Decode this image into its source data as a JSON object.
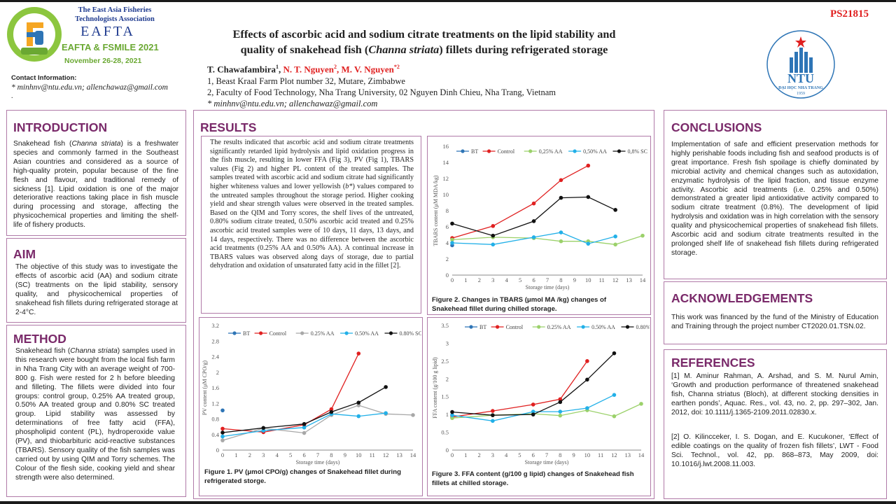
{
  "header": {
    "assoc_line1": "The East Asia Fisheries",
    "assoc_line2": "Technologists Association",
    "eafta_big": "EAFTA",
    "eafta_sub": "EAFTA & FSMILE 2021",
    "eafta_date": "November 26-28, 2021",
    "contact_label": "Contact Information:",
    "contact_emails": "* minhnv@ntu.edu.vn; allenchawaz@gmail.com",
    "contact_dot": ".",
    "title_line1": "Effects of ascorbic acid and sodium citrate treatments on the lipid stability and",
    "title_line2a": "quality of snakehead fish (",
    "title_line2b": "Channa striata",
    "title_line2c": ") fillets during refrigerated storage",
    "author1": "T. Chawafambira",
    "author1_sup": "1",
    "author_sep": ", ",
    "author2": "N. T. Nguyen",
    "author2_sup": "2",
    "author3": "M. V. Nguyen",
    "author3_sup": "*2",
    "affil1": "1, Beast Kraal Farm Plot number 32, Mutare, Zimbabwe",
    "affil2": "2, Faculty of Food Technology, Nha Trang University, 02 Nguyen Dinh Chieu, Nha Trang, Vietnam",
    "affil3": "* minhnv@ntu.edu.vn; allenchawaz@gmail.com",
    "ps_code": "PS21815",
    "ntu_text": "NTU",
    "ntu_name": "ĐẠI HỌC NHA TRANG",
    "ntu_year": "1959"
  },
  "sections": {
    "introduction": {
      "heading": "INTRODUCTION",
      "p1": "Snakehead fish (",
      "p1_italic": "Channa striata",
      "p1_rest": ") is a freshwater species and commonly farmed in the Southeast Asian countries and considered as a source of high-quality protein, popular because of the fine flesh and flavour, and traditional remedy of sickness [1]. Lipid oxidation is one of the major deteriorative reactions taking place in fish muscle during processing and storage, affecting the physicochemical properties and limiting the shelf-life of fishery products."
    },
    "aim": {
      "heading": "AIM",
      "text": "The objective of this study was to investigate the effects of ascorbic acid (AA) and sodium citrate (SC) treatments on the lipid stability, sensory quality, and physicochemical properties of snakehead fish fillets during refrigerated storage at 2-4°C."
    },
    "method": {
      "heading": "METHOD",
      "p1": "Snakehead fish (",
      "p1_italic": "Channa striata",
      "p1_rest": ") samples used in this research were bought from the local fish farm in Nha Trang City with an average weight of 700-800 g. Fish were rested for 2 h before bleeding and filleting. The fillets were divided into four groups: control group, 0.25% AA treated group, 0.50% AA treated group and 0.80% SC treated group. Lipid stability was assessed by determinations of free fatty acid (FFA), phospholipid content (PL), hydroperoxide value (PV), and thiobarbituric acid-reactive substances (TBARS). Sensory quality of the fish samples was carried out by using QIM and Torry schemes. The Colour of the flesh side, cooking yield and shear strength were also determined."
    },
    "results": {
      "heading": "RESULTS",
      "p1": "The results indicated that ascorbic acid and sodium citrate treatments significantly retarded lipid hydrolysis and lipid oxidation progress in the fish muscle, resulting in lower FFA (Fig 3), PV (Fig 1), TBARS values (Fig 2) and higher PL content of the treated samples. The samples treated with ascorbic acid and sodium citrate had significantly higher whiteness values and lower yellowish (",
      "p1_italic": "b*",
      "p1_rest": ") values compared to the untreated samples throughout the storage period. Higher cooking yield and shear strength values were observed in the treated samples. Based on the QIM and Torry scores, the shelf lives of the untreated, 0.80% sodium citrate treated, 0.50% ascorbic acid treated and 0.25% ascorbic acid treated samples were of 10 days, 11 days, 13 days, and 14 days, respectively. There was no difference between the ascorbic acid treatments (0.25% AA and 0.50% AA). A continual increase in TBARS values was observed along days of storage, due to partial dehydration and oxidation of unsaturated fatty acid in the fillet [2]."
    },
    "conclusions": {
      "heading": "CONCLUSIONS",
      "text": "Implementation of safe and efficient preservation methods for highly perishable foods including fish and seafood products is of great importance. Fresh fish spoilage is chiefly dominated by microbial activity and chemical changes such as autoxidation, enzymatic hydrolysis of the lipid fraction, and tissue enzyme activity. Ascorbic acid treatments (i.e. 0.25% and 0.50%) demonstrated a greater lipid antioxidative activity compared to sodium citrate treatment (0.8%). The development of lipid hydrolysis and oxidation was in high correlation with the sensory quality and physicochemical properties of snakehead fish fillets. Ascorbic acid and sodium citrate treatments resulted in the prolonged shelf life of snakehead fish fillets during refrigerated storage."
    },
    "acknowledgements": {
      "heading": "ACKNOWLEDGEMENTS",
      "text": "This work was financed by the fund of the Ministry of Education and Training through the project number CT2020.01.TSN.02."
    },
    "references": {
      "heading": "REFERENCES",
      "ref1": "[1]    M. Aminur Rahman, A. Arshad, and S. M. Nurul Amin, ‘Growth and production performance of threatened snakehead fish, Channa striatus (Bloch), at different stocking densities in earthen ponds’, Aquac. Res., vol. 43, no. 2, pp. 297–302, Jan. 2012, doi: 10.1111/j.1365-2109.2011.02830.x.",
      "ref2": "[2]    O. Kilincceker, I. S. Dogan, and E. Kucukoner, ‘Effect of edible coatings on the quality of frozen fish fillets’, LWT - Food Sci. Technol., vol. 42, pp. 868–873, May 2009, doi: 10.1016/j.lwt.2008.11.003."
    }
  },
  "figures": {
    "fig2_caption": "Figure 2.  Changes in TBARS (μmol MA /kg) changes of Snakehead fillet during chilled storage.",
    "fig1_caption": "Figure 1. PV (μmol CPO/g) changes  of Snakehead fillet during refrigerated storge.",
    "fig3_caption": "Figure 3. FFA content (g/100 g lipid) changes of Snakehead fish fillets at chilled storage."
  },
  "chart_data": [
    {
      "type": "line",
      "id": "tbars",
      "xlabel": "Storage time (days)",
      "ylabel": "TBARS content (μM MDA/kg)",
      "xlim": [
        0,
        14
      ],
      "ylim": [
        0,
        16
      ],
      "xticks": [
        0,
        1,
        2,
        3,
        4,
        5,
        6,
        7,
        8,
        9,
        10,
        11,
        12,
        13,
        14
      ],
      "yticks": [
        0,
        2,
        4,
        6,
        8,
        10,
        12,
        14,
        16
      ],
      "legend": "top",
      "series": [
        {
          "name": "BT",
          "color": "#2e75b6",
          "points": [
            [
              0,
              3.7
            ]
          ]
        },
        {
          "name": "Control",
          "color": "#e02020",
          "points": [
            [
              0,
              4.6
            ],
            [
              3,
              6.1
            ],
            [
              6,
              8.9
            ],
            [
              8,
              11.8
            ],
            [
              10,
              13.6
            ]
          ]
        },
        {
          "name": "0,25% AA",
          "color": "#9bd16a",
          "points": [
            [
              0,
              4.4
            ],
            [
              3,
              4.7
            ],
            [
              6,
              4.6
            ],
            [
              8,
              4.2
            ],
            [
              10,
              4.2
            ],
            [
              12,
              3.8
            ],
            [
              14,
              4.9
            ]
          ]
        },
        {
          "name": "0,50% AA",
          "color": "#22b0e8",
          "points": [
            [
              0,
              4.0
            ],
            [
              3,
              3.8
            ],
            [
              6,
              4.7
            ],
            [
              8,
              5.3
            ],
            [
              10,
              3.9
            ],
            [
              12,
              4.8
            ]
          ]
        },
        {
          "name": "0,8% SC",
          "color": "#111111",
          "points": [
            [
              0,
              6.4
            ],
            [
              3,
              4.9
            ],
            [
              6,
              6.7
            ],
            [
              8,
              9.6
            ],
            [
              10,
              9.7
            ],
            [
              12,
              8.1
            ]
          ]
        }
      ]
    },
    {
      "type": "line",
      "id": "pv",
      "xlabel": "Storage time (days)",
      "ylabel": "PV content (μM CPO/g)",
      "xlim": [
        0,
        14
      ],
      "ylim": [
        0,
        3.2
      ],
      "xticks": [
        0,
        1,
        2,
        3,
        4,
        5,
        6,
        7,
        8,
        9,
        10,
        11,
        12,
        13,
        14
      ],
      "yticks": [
        0,
        0.4,
        0.8,
        1.2,
        1.6,
        2.0,
        2.4,
        2.8,
        3.2
      ],
      "ytick_labels": [
        "0",
        "0.4",
        "0.8",
        "1.2",
        "1.6",
        "2",
        "2.4",
        "2.8",
        "3.2"
      ],
      "legend": "top",
      "series": [
        {
          "name": "BT",
          "color": "#2e75b6",
          "points": [
            [
              0,
              1.02
            ]
          ]
        },
        {
          "name": "Control",
          "color": "#e02020",
          "points": [
            [
              0,
              0.55
            ],
            [
              3,
              0.46
            ],
            [
              6,
              0.65
            ],
            [
              8,
              1.05
            ],
            [
              10,
              2.48
            ]
          ]
        },
        {
          "name": "0.25% AA",
          "color": "#a8a8a8",
          "points": [
            [
              0,
              0.25
            ],
            [
              3,
              0.56
            ],
            [
              6,
              0.44
            ],
            [
              8,
              0.9
            ],
            [
              10,
              1.15
            ],
            [
              12,
              0.93
            ],
            [
              14,
              0.9
            ]
          ]
        },
        {
          "name": "0.50% AA",
          "color": "#22b0e8",
          "points": [
            [
              0,
              0.35
            ],
            [
              3,
              0.5
            ],
            [
              6,
              0.58
            ],
            [
              8,
              0.93
            ],
            [
              10,
              0.87
            ],
            [
              12,
              0.95
            ]
          ]
        },
        {
          "name": "0.80% SC",
          "color": "#111111",
          "points": [
            [
              0,
              0.45
            ],
            [
              3,
              0.57
            ],
            [
              6,
              0.67
            ],
            [
              8,
              0.98
            ],
            [
              10,
              1.22
            ],
            [
              12,
              1.62
            ]
          ]
        }
      ]
    },
    {
      "type": "line",
      "id": "ffa",
      "xlabel": "Storage time (days)",
      "ylabel": "FFA content (g/100 g lipid)",
      "xlim": [
        0,
        14
      ],
      "ylim": [
        0,
        3.5
      ],
      "xticks": [
        0,
        1,
        2,
        3,
        4,
        5,
        6,
        7,
        8,
        9,
        10,
        11,
        12,
        13,
        14
      ],
      "yticks": [
        0,
        0.5,
        1.0,
        1.5,
        2.0,
        2.5,
        3.0,
        3.5
      ],
      "ytick_labels": [
        "0",
        "0.5",
        "1",
        "1.5",
        "2",
        "2.5",
        "3",
        "3.5"
      ],
      "legend": "top",
      "series": [
        {
          "name": "BT",
          "color": "#2e75b6",
          "points": [
            [
              0,
              0.98
            ]
          ]
        },
        {
          "name": "Control",
          "color": "#e02020",
          "points": [
            [
              0,
              0.93
            ],
            [
              3,
              1.1
            ],
            [
              6,
              1.28
            ],
            [
              8,
              1.43
            ],
            [
              10,
              2.5
            ]
          ]
        },
        {
          "name": "0.25% AA",
          "color": "#9bd16a",
          "points": [
            [
              0,
              0.9
            ],
            [
              3,
              0.98
            ],
            [
              6,
              1.02
            ],
            [
              8,
              0.97
            ],
            [
              10,
              1.12
            ],
            [
              12,
              0.95
            ],
            [
              14,
              1.3
            ]
          ]
        },
        {
          "name": "0.50% AA",
          "color": "#22b0e8",
          "points": [
            [
              0,
              0.98
            ],
            [
              3,
              0.82
            ],
            [
              6,
              1.08
            ],
            [
              8,
              1.08
            ],
            [
              10,
              1.18
            ],
            [
              12,
              1.55
            ]
          ]
        },
        {
          "name": "0.80% SC",
          "color": "#111111",
          "points": [
            [
              0,
              1.07
            ],
            [
              3,
              0.98
            ],
            [
              6,
              1.0
            ],
            [
              8,
              1.35
            ],
            [
              10,
              1.98
            ],
            [
              12,
              2.72
            ]
          ]
        }
      ]
    }
  ]
}
